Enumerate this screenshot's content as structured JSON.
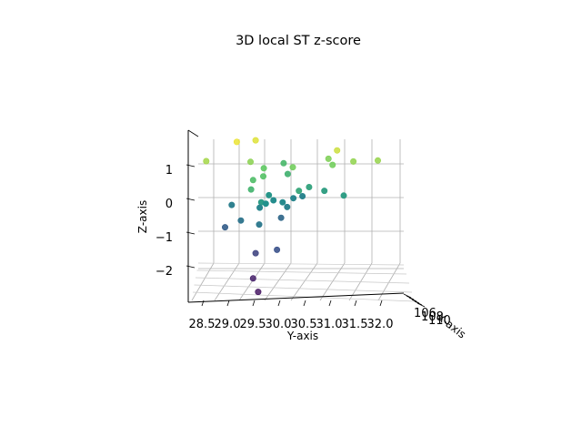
{
  "chart_data": {
    "type": "scatter",
    "projection": "3d",
    "title": "3D local ST z-score",
    "xlabel": "X-axis",
    "ylabel": "Y-axis",
    "zlabel": "Z-axis",
    "colormap": "viridis",
    "y_ticks": [
      "28.5",
      "29.0",
      "29.5",
      "30.0",
      "30.5",
      "31.0",
      "31.5",
      "32.0"
    ],
    "z_ticks": [
      "1",
      "0",
      "−1",
      "−2"
    ],
    "x_ticks_overlapping": [
      "106",
      "108",
      "110"
    ],
    "ylim": [
      28.3,
      32.05
    ],
    "zlim": [
      -2.95,
      2.05
    ],
    "points": [
      {
        "y": 28.55,
        "z": 1.08,
        "v": 0.86
      },
      {
        "y": 29.15,
        "z": 1.65,
        "v": 0.97
      },
      {
        "y": 29.52,
        "z": 1.7,
        "v": 0.95
      },
      {
        "y": 29.42,
        "z": 1.06,
        "v": 0.82
      },
      {
        "y": 29.68,
        "z": 0.87,
        "v": 0.75
      },
      {
        "y": 30.07,
        "z": 1.02,
        "v": 0.68
      },
      {
        "y": 29.47,
        "z": 0.52,
        "v": 0.7
      },
      {
        "y": 29.67,
        "z": 0.63,
        "v": 0.72
      },
      {
        "y": 30.15,
        "z": 0.7,
        "v": 0.65
      },
      {
        "y": 29.43,
        "z": 0.24,
        "v": 0.66
      },
      {
        "y": 30.37,
        "z": 0.2,
        "v": 0.6
      },
      {
        "y": 30.57,
        "z": 0.31,
        "v": 0.58
      },
      {
        "y": 30.87,
        "z": 0.2,
        "v": 0.56
      },
      {
        "y": 29.78,
        "z": 0.07,
        "v": 0.52
      },
      {
        "y": 29.87,
        "z": -0.08,
        "v": 0.48
      },
      {
        "y": 29.63,
        "z": -0.14,
        "v": 0.54
      },
      {
        "y": 29.72,
        "z": -0.18,
        "v": 0.5
      },
      {
        "y": 30.05,
        "z": -0.14,
        "v": 0.47
      },
      {
        "y": 30.26,
        "z": -0.02,
        "v": 0.45
      },
      {
        "y": 30.44,
        "z": 0.04,
        "v": 0.44
      },
      {
        "y": 29.05,
        "z": -0.22,
        "v": 0.42
      },
      {
        "y": 29.6,
        "z": -0.3,
        "v": 0.45
      },
      {
        "y": 30.14,
        "z": -0.28,
        "v": 0.43
      },
      {
        "y": 31.25,
        "z": 0.06,
        "v": 0.55
      },
      {
        "y": 29.23,
        "z": -0.68,
        "v": 0.38
      },
      {
        "y": 29.59,
        "z": -0.8,
        "v": 0.4
      },
      {
        "y": 30.02,
        "z": -0.6,
        "v": 0.34
      },
      {
        "y": 28.92,
        "z": -0.88,
        "v": 0.3
      },
      {
        "y": 29.52,
        "z": -1.65,
        "v": 0.2
      },
      {
        "y": 29.94,
        "z": -1.55,
        "v": 0.25
      },
      {
        "y": 29.47,
        "z": -2.4,
        "v": 0.08
      },
      {
        "y": 29.57,
        "z": -2.8,
        "v": 0.05
      },
      {
        "y": 31.12,
        "z": 1.4,
        "v": 0.92
      },
      {
        "y": 31.03,
        "z": 0.97,
        "v": 0.78
      },
      {
        "y": 31.44,
        "z": 1.07,
        "v": 0.83
      },
      {
        "y": 31.92,
        "z": 1.1,
        "v": 0.84
      },
      {
        "y": 30.95,
        "z": 1.15,
        "v": 0.8
      },
      {
        "y": 30.25,
        "z": 0.9,
        "v": 0.78
      }
    ]
  }
}
